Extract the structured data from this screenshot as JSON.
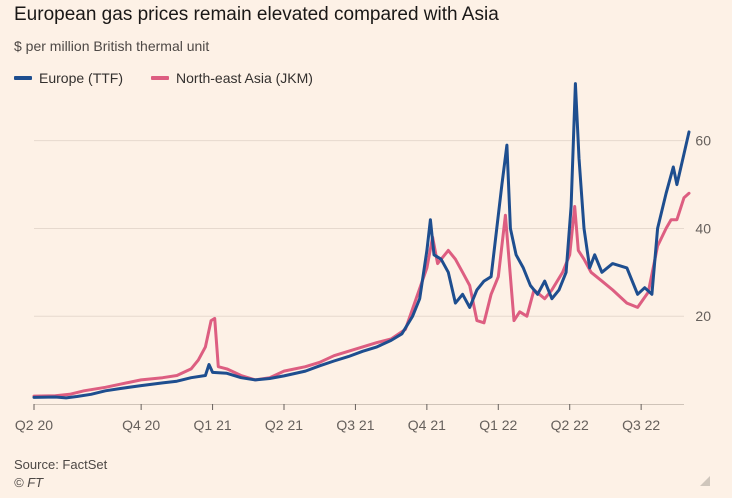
{
  "chart_data": {
    "type": "line",
    "title": "European gas prices remain elevated compared with Asia",
    "subtitle": "$ per million British thermal unit",
    "source": "Source: FactSet",
    "credit": "© FT",
    "ylim": [
      0,
      72
    ],
    "yticks": [
      20,
      40,
      60
    ],
    "xlim": [
      0,
      9.1
    ],
    "x_ticks": [
      {
        "label": "Q2 20",
        "x": 0
      },
      {
        "label": "Q4 20",
        "x": 1.5
      },
      {
        "label": "Q1 21",
        "x": 2.5
      },
      {
        "label": "Q2 21",
        "x": 3.5
      },
      {
        "label": "Q3 21",
        "x": 4.5
      },
      {
        "label": "Q4 21",
        "x": 5.5
      },
      {
        "label": "Q1 22",
        "x": 6.5
      },
      {
        "label": "Q2 22",
        "x": 7.5
      },
      {
        "label": "Q3 22",
        "x": 8.5
      }
    ],
    "x_unit": "quarters since start of Q2 2020",
    "series": [
      {
        "name": "Europe (TTF)",
        "color": "#1e4e8f",
        "points": [
          [
            0,
            1.5
          ],
          [
            0.3,
            1.6
          ],
          [
            0.45,
            1.4
          ],
          [
            0.6,
            1.7
          ],
          [
            0.8,
            2.2
          ],
          [
            1.0,
            3.0
          ],
          [
            1.2,
            3.5
          ],
          [
            1.5,
            4.2
          ],
          [
            1.8,
            4.8
          ],
          [
            2.0,
            5.2
          ],
          [
            2.2,
            6.0
          ],
          [
            2.4,
            6.5
          ],
          [
            2.45,
            9.0
          ],
          [
            2.5,
            7.2
          ],
          [
            2.7,
            7.0
          ],
          [
            2.9,
            6.0
          ],
          [
            3.1,
            5.5
          ],
          [
            3.3,
            5.8
          ],
          [
            3.5,
            6.4
          ],
          [
            3.8,
            7.5
          ],
          [
            4.0,
            8.7
          ],
          [
            4.2,
            9.8
          ],
          [
            4.4,
            10.8
          ],
          [
            4.6,
            12.0
          ],
          [
            4.8,
            13.0
          ],
          [
            5.0,
            14.5
          ],
          [
            5.15,
            16.0
          ],
          [
            5.3,
            20.0
          ],
          [
            5.4,
            24.0
          ],
          [
            5.5,
            35.0
          ],
          [
            5.55,
            42.0
          ],
          [
            5.6,
            34.0
          ],
          [
            5.7,
            33.0
          ],
          [
            5.8,
            30.0
          ],
          [
            5.9,
            23.0
          ],
          [
            6.0,
            25.0
          ],
          [
            6.1,
            22.0
          ],
          [
            6.2,
            26.0
          ],
          [
            6.3,
            28.0
          ],
          [
            6.4,
            29.0
          ],
          [
            6.55,
            50.0
          ],
          [
            6.62,
            59.0
          ],
          [
            6.67,
            40.0
          ],
          [
            6.75,
            34.0
          ],
          [
            6.85,
            31.0
          ],
          [
            6.95,
            27.0
          ],
          [
            7.05,
            25.0
          ],
          [
            7.15,
            28.0
          ],
          [
            7.25,
            24.0
          ],
          [
            7.35,
            26.0
          ],
          [
            7.45,
            30.0
          ],
          [
            7.52,
            45.0
          ],
          [
            7.58,
            73.0
          ],
          [
            7.63,
            56.0
          ],
          [
            7.7,
            40.0
          ],
          [
            7.78,
            31.0
          ],
          [
            7.85,
            34.0
          ],
          [
            7.95,
            30.0
          ],
          [
            8.1,
            32.0
          ],
          [
            8.3,
            31.0
          ],
          [
            8.45,
            25.0
          ],
          [
            8.55,
            26.5
          ],
          [
            8.65,
            25.0
          ],
          [
            8.73,
            40.0
          ],
          [
            8.85,
            48.0
          ],
          [
            8.95,
            54.0
          ],
          [
            9.0,
            50.0
          ],
          [
            9.1,
            57.0
          ],
          [
            9.17,
            62.0
          ]
        ]
      },
      {
        "name": "North-east Asia (JKM)",
        "color": "#dd5e81",
        "points": [
          [
            0,
            1.8
          ],
          [
            0.3,
            1.9
          ],
          [
            0.5,
            2.2
          ],
          [
            0.7,
            3.0
          ],
          [
            1.0,
            3.8
          ],
          [
            1.2,
            4.5
          ],
          [
            1.5,
            5.5
          ],
          [
            1.8,
            6.0
          ],
          [
            2.0,
            6.5
          ],
          [
            2.2,
            8.0
          ],
          [
            2.3,
            10.0
          ],
          [
            2.4,
            13.0
          ],
          [
            2.48,
            19.0
          ],
          [
            2.53,
            19.5
          ],
          [
            2.58,
            8.5
          ],
          [
            2.7,
            8.0
          ],
          [
            2.9,
            6.5
          ],
          [
            3.1,
            5.5
          ],
          [
            3.3,
            6.0
          ],
          [
            3.5,
            7.5
          ],
          [
            3.8,
            8.5
          ],
          [
            4.0,
            9.5
          ],
          [
            4.2,
            11.0
          ],
          [
            4.4,
            12.0
          ],
          [
            4.6,
            13.0
          ],
          [
            4.8,
            14.0
          ],
          [
            5.0,
            14.8
          ],
          [
            5.2,
            17.0
          ],
          [
            5.35,
            24.0
          ],
          [
            5.5,
            31.0
          ],
          [
            5.58,
            38.0
          ],
          [
            5.65,
            32.0
          ],
          [
            5.8,
            35.0
          ],
          [
            5.9,
            33.0
          ],
          [
            6.0,
            30.0
          ],
          [
            6.1,
            27.0
          ],
          [
            6.2,
            19.0
          ],
          [
            6.3,
            18.5
          ],
          [
            6.4,
            25.0
          ],
          [
            6.5,
            29.0
          ],
          [
            6.6,
            43.0
          ],
          [
            6.66,
            31.0
          ],
          [
            6.72,
            19.0
          ],
          [
            6.8,
            21.0
          ],
          [
            6.9,
            20.0
          ],
          [
            7.0,
            26.0
          ],
          [
            7.15,
            24.0
          ],
          [
            7.25,
            26.0
          ],
          [
            7.4,
            30.0
          ],
          [
            7.5,
            34.0
          ],
          [
            7.57,
            45.0
          ],
          [
            7.62,
            35.0
          ],
          [
            7.7,
            33.0
          ],
          [
            7.8,
            30.0
          ],
          [
            7.95,
            28.0
          ],
          [
            8.1,
            26.0
          ],
          [
            8.3,
            23.0
          ],
          [
            8.45,
            22.0
          ],
          [
            8.6,
            25.5
          ],
          [
            8.73,
            36.0
          ],
          [
            8.85,
            40.0
          ],
          [
            8.92,
            42.0
          ],
          [
            9.0,
            42.0
          ],
          [
            9.1,
            47.0
          ],
          [
            9.17,
            48.0
          ]
        ]
      }
    ]
  }
}
